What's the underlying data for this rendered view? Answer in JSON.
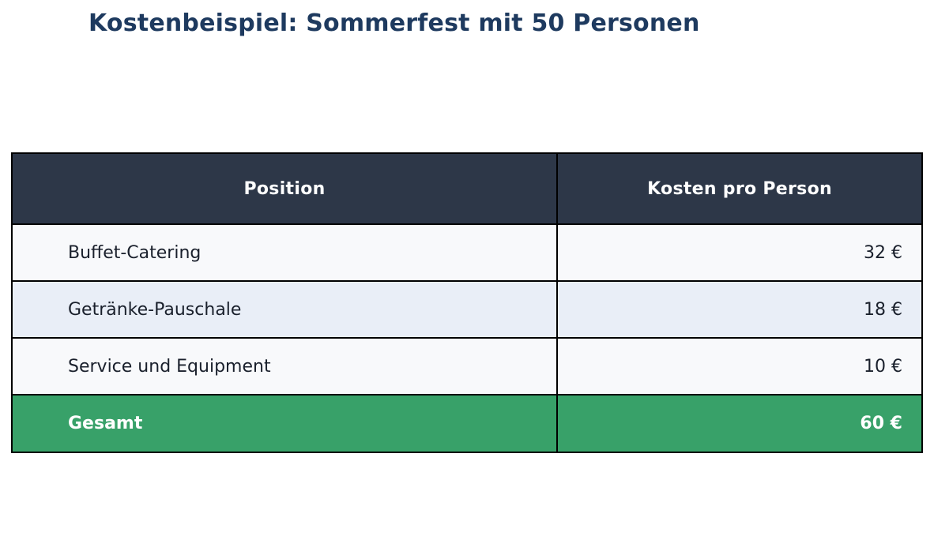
{
  "title": "Kostenbeispiel: Sommerfest mit 50 Personen",
  "table": {
    "headers": [
      "Position",
      "Kosten pro Person"
    ],
    "rows": [
      {
        "position": "Buffet-Catering",
        "cost": "32 €"
      },
      {
        "position": "Getränke-Pauschale",
        "cost": "18 €"
      },
      {
        "position": "Service und Equipment",
        "cost": "10 €"
      }
    ],
    "total": {
      "position": "Gesamt",
      "cost": "60 €"
    }
  },
  "colors": {
    "title": "#1e3a5f",
    "header_bg": "#2d3748",
    "header_text": "#ffffff",
    "row_bg": "#f8f9fb",
    "row_alt_bg": "#e9eef7",
    "total_bg": "#38a169",
    "total_text": "#ffffff",
    "body_text": "#1a202c",
    "border": "#000000",
    "page_bg": "#ffffff"
  },
  "chart_data": {
    "type": "table",
    "title": "Kostenbeispiel: Sommerfest mit 50 Personen",
    "columns": [
      "Position",
      "Kosten pro Person"
    ],
    "rows": [
      [
        "Buffet-Catering",
        "32 €"
      ],
      [
        "Getränke-Pauschale",
        "18 €"
      ],
      [
        "Service und Equipment",
        "10 €"
      ],
      [
        "Gesamt",
        "60 €"
      ]
    ],
    "values_eur_per_person": {
      "Buffet-Catering": 32,
      "Getränke-Pauschale": 18,
      "Service und Equipment": 10,
      "Gesamt": 60
    },
    "currency": "EUR",
    "persons": 50,
    "layout_hints": {
      "header_style": "dark-navy, white bold, centered",
      "total_row_style": "green background, white bold",
      "value_alignment": "right",
      "grid": "black 2px borders on all cells"
    }
  }
}
